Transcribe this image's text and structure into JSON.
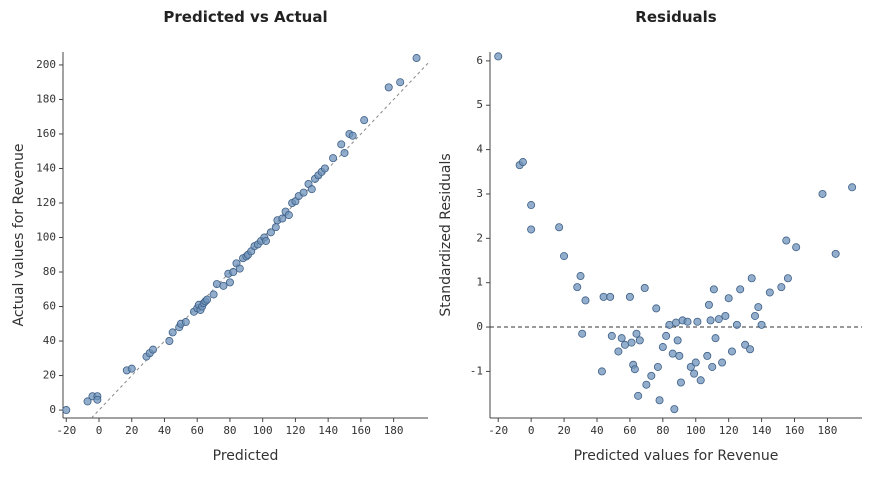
{
  "chart_data": [
    {
      "type": "scatter",
      "title": "Predicted vs Actual",
      "x_label": "Predicted",
      "y_label": "Actual values for Revenue",
      "color": "#6f93bb",
      "diagonal": true,
      "xlim": [
        -22,
        201
      ],
      "ylim": [
        -4.6,
        207.5
      ],
      "xticks": [
        -20,
        0,
        20,
        40,
        60,
        80,
        100,
        120,
        140,
        160,
        180
      ],
      "yticks": [
        0,
        20,
        40,
        60,
        80,
        100,
        120,
        140,
        160,
        180,
        200
      ],
      "x": [
        -20,
        -7,
        -4,
        -1,
        -1,
        17,
        20,
        29,
        31,
        33,
        43,
        45,
        49,
        50,
        53,
        58,
        60,
        61,
        62,
        63,
        64,
        65,
        66,
        70,
        72,
        76,
        79,
        80,
        82,
        84,
        86,
        88,
        90,
        91,
        93,
        95,
        97,
        99,
        101,
        102,
        105,
        108,
        109,
        112,
        114,
        116,
        118,
        120,
        122,
        125,
        128,
        130,
        132,
        134,
        136,
        138,
        143,
        148,
        150,
        153,
        155,
        162,
        177,
        184,
        194
      ],
      "values": [
        0,
        5,
        8,
        8,
        6,
        23,
        24,
        31,
        33,
        35,
        40,
        45,
        48,
        50,
        51,
        57,
        59,
        61,
        58,
        60,
        62,
        63,
        64,
        67,
        73,
        72,
        79,
        74,
        80,
        85,
        82,
        88,
        89,
        90,
        92,
        95,
        96,
        98,
        100,
        98,
        103,
        106,
        110,
        111,
        115,
        113,
        120,
        121,
        124,
        126,
        131,
        128,
        134,
        136,
        138,
        140,
        146,
        154,
        149,
        160,
        159,
        168,
        187,
        190,
        204
      ]
    },
    {
      "type": "scatter",
      "title": "Residuals",
      "x_label": "Predicted values for Revenue",
      "y_label": "Standardized Residuals",
      "color": "#6f93bb",
      "hline": 0,
      "xlim": [
        -25,
        201
      ],
      "ylim": [
        -2.05,
        6.2
      ],
      "xticks": [
        -20,
        0,
        20,
        40,
        60,
        80,
        100,
        120,
        140,
        160,
        180
      ],
      "yticks": [
        -1,
        0,
        1,
        2,
        3,
        4,
        5,
        6
      ],
      "x": [
        -20,
        -7,
        -5,
        0,
        0,
        17,
        20,
        28,
        30,
        31,
        33,
        43,
        44,
        48,
        49,
        53,
        55,
        57,
        60,
        61,
        62,
        63,
        64,
        65,
        66,
        69,
        70,
        73,
        76,
        77,
        78,
        80,
        82,
        84,
        86,
        87,
        88,
        89,
        90,
        91,
        92,
        95,
        97,
        99,
        100,
        101,
        103,
        107,
        108,
        109,
        110,
        111,
        112,
        114,
        116,
        118,
        120,
        122,
        125,
        127,
        130,
        133,
        134,
        136,
        138,
        140,
        145,
        152,
        155,
        156,
        161,
        177,
        185,
        195
      ],
      "values": [
        6.1,
        3.65,
        3.72,
        2.75,
        2.2,
        2.25,
        1.6,
        0.9,
        1.15,
        -0.15,
        0.6,
        -1.0,
        0.68,
        0.68,
        -0.2,
        -0.55,
        -0.25,
        -0.4,
        0.68,
        -0.35,
        -0.85,
        -0.95,
        -0.15,
        -1.55,
        -0.3,
        0.88,
        -1.3,
        -1.1,
        0.42,
        -0.9,
        -1.65,
        -0.45,
        -0.2,
        0.05,
        -0.6,
        -1.85,
        0.1,
        -0.3,
        -0.65,
        -1.25,
        0.15,
        0.12,
        -0.9,
        -1.05,
        -0.8,
        0.12,
        -1.2,
        -0.65,
        0.5,
        0.15,
        -0.9,
        0.85,
        -0.25,
        0.18,
        -0.8,
        0.25,
        0.65,
        -0.55,
        0.05,
        0.85,
        -0.4,
        -0.5,
        1.1,
        0.25,
        0.45,
        0.05,
        0.78,
        0.9,
        1.95,
        1.1,
        1.8,
        3.0,
        1.65,
        3.15
      ]
    }
  ]
}
